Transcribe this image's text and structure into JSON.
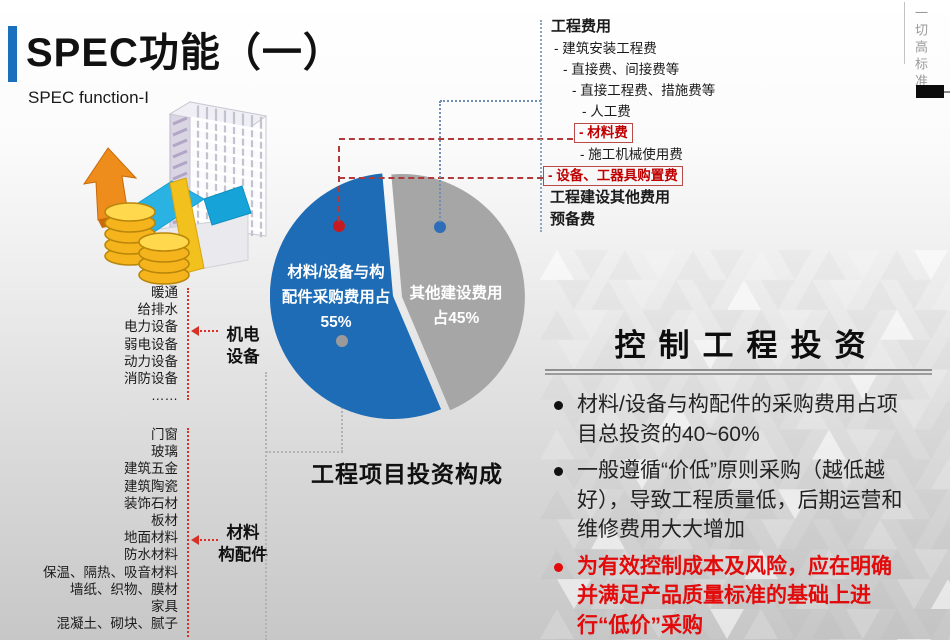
{
  "slide": {
    "title": "SPEC功能（一）",
    "subtitle": "SPEC function-I",
    "edge_note": "一切高标准"
  },
  "colors": {
    "accent_blue": "#1a70bd",
    "pie_blue": "#1e6cb5",
    "pie_gray": "#a6a6a6",
    "tree_red": "#c00000",
    "bullet_red": "#e20a0a"
  },
  "mech_group": {
    "label": "机电\n设备",
    "items": [
      "暖通",
      "给排水",
      "电力设备",
      "弱电设备",
      "动力设备",
      "消防设备",
      "……"
    ]
  },
  "materials_group": {
    "label": "材料\n构配件",
    "items": [
      "门窗",
      "玻璃",
      "建筑五金",
      "建筑陶瓷",
      "装饰石材",
      "板材",
      "地面材料",
      "防水材料",
      "保温、隔热、吸音材料",
      "墙纸、织物、膜材",
      "家具",
      "混凝土、砌块、腻子"
    ]
  },
  "cost_tree": {
    "items": [
      {
        "text": "工程费用",
        "indent": 8,
        "style": "bold"
      },
      {
        "text": "- 建筑安装工程费",
        "indent": 11,
        "style": "normal"
      },
      {
        "text": "- 直接费、间接费等",
        "indent": 20,
        "style": "normal"
      },
      {
        "text": "- 直接工程费、措施费等",
        "indent": 29,
        "style": "normal"
      },
      {
        "text": "- 人工费",
        "indent": 39,
        "style": "normal"
      },
      {
        "text": "- 材料费",
        "indent": 31,
        "style": "redbox"
      },
      {
        "text": "- 施工机械使用费",
        "indent": 37,
        "style": "normal"
      },
      {
        "text": "- 设备、工器具购置费",
        "indent": 0,
        "style": "redbox"
      },
      {
        "text": "工程建设其他费用",
        "indent": 7,
        "style": "bold"
      },
      {
        "text": "预备费",
        "indent": 7,
        "style": "bold"
      }
    ]
  },
  "chart_data": {
    "type": "pie",
    "title": "工程项目投资构成",
    "categories": [
      "材料/设备与构配件采购费用",
      "其他建设费用"
    ],
    "values": [
      55,
      45
    ],
    "slices": [
      {
        "name": "材料/设备与构配件采购费用",
        "value": 55,
        "color": "#1e6cb5",
        "label": "材料/设备与构\n配件采购费用占\n55%"
      },
      {
        "name": "其他建设费用",
        "value": 45,
        "color": "#a6a6a6",
        "label": "其他建设费用\n占45%"
      }
    ],
    "legend_position": "none",
    "start_angle_deg": 95
  },
  "caption": "工程项目投资构成",
  "panel": {
    "title": "控制工程投资",
    "bullets": [
      {
        "text": "材料/设备与构配件的采购费用占项目总投资的40~60%",
        "style": "normal"
      },
      {
        "text": "一般遵循“价低”原则采购（越低越好），导致工程质量低，后期运营和维修费用大大增加",
        "style": "normal"
      },
      {
        "text": "为有效控制成本及风险，应在明确并满足产品质量标准的基础上进行“低价”采购",
        "style": "red"
      }
    ]
  }
}
